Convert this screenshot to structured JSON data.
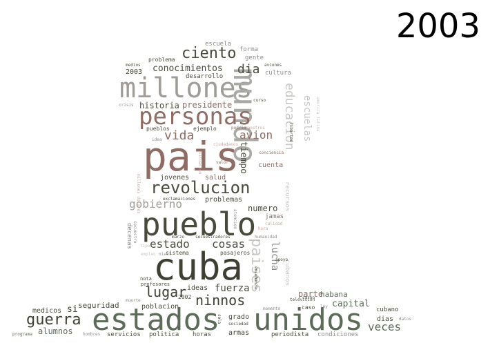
{
  "year": "2003",
  "words": [
    {
      "t": "pais",
      "c": "#8f6d64"
    },
    {
      "t": "cuba",
      "c": "#3f3f33"
    },
    {
      "t": "estados",
      "c": "#5c6c59"
    },
    {
      "t": "unidos",
      "c": "#5c6c59"
    },
    {
      "t": "pueblo",
      "c": "#4a4a3c"
    },
    {
      "t": "millones",
      "c": "#a09c98"
    },
    {
      "t": "mundo",
      "c": "#a8aaa6"
    },
    {
      "t": "personas",
      "c": "#8f6d64"
    },
    {
      "t": "revolucion",
      "c": "#4a4a3c"
    },
    {
      "t": "ciento",
      "c": "#4a4a3c"
    },
    {
      "t": "dia",
      "c": "#4a4a3c"
    },
    {
      "t": "vida",
      "c": "#8f6d64"
    },
    {
      "t": "avion",
      "c": "#8f6d64"
    },
    {
      "t": "gobierno",
      "c": "#a09c98"
    },
    {
      "t": "estado",
      "c": "#4a4a3c"
    },
    {
      "t": "cosas",
      "c": "#4a4a3c"
    },
    {
      "t": "ninnos",
      "c": "#3f3f33"
    },
    {
      "t": "lugar",
      "c": "#3f3f33"
    },
    {
      "t": "fuerza",
      "c": "#4a4a3c"
    },
    {
      "t": "guerra",
      "c": "#3f3f33"
    },
    {
      "t": "veces",
      "c": "#5c6c59"
    },
    {
      "t": "capital",
      "c": "#5c6c59"
    },
    {
      "t": "paises",
      "c": "#c5c8c3"
    },
    {
      "t": "educacion",
      "c": "#c5c8c3"
    },
    {
      "t": "escuelas",
      "c": "#c5c8c3"
    },
    {
      "t": "conocimientos",
      "c": "#4a4a3c"
    },
    {
      "t": "historia",
      "c": "#4a4a3c"
    },
    {
      "t": "presidente",
      "c": "#8f6d64"
    },
    {
      "t": "tiempo",
      "c": "#4a4a3c"
    },
    {
      "t": "numero",
      "c": "#4a4a3c"
    },
    {
      "t": "problemas",
      "c": "#4a4a3c"
    },
    {
      "t": "jovenes",
      "c": "#4a4a3c"
    },
    {
      "t": "salud",
      "c": "#8f6d64"
    },
    {
      "t": "cuenta",
      "c": "#8f6d64"
    },
    {
      "t": "lucha",
      "c": "#8b8c88"
    },
    {
      "t": "parte",
      "c": "#8f6d64"
    },
    {
      "t": "habana",
      "c": "#5c6c59"
    },
    {
      "t": "seguridad",
      "c": "#4a4a3c"
    },
    {
      "t": "alumnos",
      "c": "#5c6c59"
    },
    {
      "t": "dias",
      "c": "#4a4a3c"
    },
    {
      "t": "medicos",
      "c": "#4a4a3c"
    },
    {
      "t": "si",
      "c": "#3f3f33"
    },
    {
      "t": "poblacion",
      "c": "#4a4a3c"
    },
    {
      "t": "ideas",
      "c": "#4a4a3c"
    },
    {
      "t": "grado",
      "c": "#4a4a3c"
    },
    {
      "t": "armas",
      "c": "#3f3f33"
    },
    {
      "t": "horas",
      "c": "#4a4a3c"
    },
    {
      "t": "periodista",
      "c": "#4a4a3c"
    },
    {
      "t": "condiciones",
      "c": "#8b8c88"
    },
    {
      "t": "servicios",
      "c": "#4a4a3c"
    },
    {
      "t": "politica",
      "c": "#4a4a3c"
    },
    {
      "t": "cubano",
      "c": "#4a4a3c"
    },
    {
      "t": "escuela",
      "c": "#8b8c88"
    },
    {
      "t": "forma",
      "c": "#8b8c88"
    },
    {
      "t": "gente",
      "c": "#8b8c88"
    },
    {
      "t": "cultura",
      "c": "#8b8c88"
    },
    {
      "t": "desarrollo",
      "c": "#4a4a3c"
    },
    {
      "t": "problema",
      "c": "#4a4a3c"
    },
    {
      "t": "2003",
      "c": "#3f3f33"
    },
    {
      "t": "jamas",
      "c": "#8f6d64"
    },
    {
      "t": "recursos",
      "c": "#c5c8c3"
    },
    {
      "t": "decenas",
      "c": "#8b8c88"
    },
    {
      "t": "cubanos",
      "c": "#c5c8c3"
    },
    {
      "t": "sistema",
      "c": "#4a4a3c"
    },
    {
      "t": "pasajeros",
      "c": "#4a4a3c"
    },
    {
      "t": "ejemplo",
      "c": "#4a4a3c"
    },
    {
      "t": "pueblos",
      "c": "#4a4a3c"
    },
    {
      "t": "profesores",
      "c": "#4a4a3c"
    },
    {
      "t": "nota",
      "c": "#4a4a3c"
    },
    {
      "t": "2002",
      "c": "#4a4a3c"
    },
    {
      "t": "muerte",
      "c": "#8b8c88"
    },
    {
      "t": "television",
      "c": "#4a4a3c"
    },
    {
      "t": "ley",
      "c": "#8b8c88"
    },
    {
      "t": "caso",
      "c": "#4a4a3c"
    },
    {
      "t": "libertad",
      "c": "#4a4a3c"
    },
    {
      "t": "curso",
      "c": "#4a4a3c"
    },
    {
      "t": "crisis",
      "c": "#8b8c88"
    },
    {
      "t": "medios",
      "c": "#4a4a3c"
    },
    {
      "t": "aviones",
      "c": "#4a4a3c"
    },
    {
      "t": "idea",
      "c": "#8b8c88"
    },
    {
      "t": "maestros",
      "c": "#c5a89f"
    },
    {
      "t": "podria",
      "c": "#8f6d64"
    },
    {
      "t": "ciudadanos",
      "c": "#c5a89f"
    },
    {
      "t": "valor",
      "c": "#8f6d64"
    },
    {
      "t": "situacion",
      "c": "#c5a89f"
    },
    {
      "t": "conciencia",
      "c": "#8f6d64"
    },
    {
      "t": "hora",
      "c": "#c5a89f"
    },
    {
      "t": "calidad",
      "c": "#c5a89f"
    },
    {
      "t": "exclamaciones",
      "c": "#4a4a3c"
    },
    {
      "t": "millones dolares",
      "c": "#c5a89f"
    },
    {
      "t": "secuestro",
      "c": "#8b8c88"
    },
    {
      "t": "marzo",
      "c": "#4a4a3c"
    },
    {
      "t": "secuestradores",
      "c": "#4a4a3c"
    },
    {
      "t": "humanidad",
      "c": "#8b8c88"
    },
    {
      "t": "atencion",
      "c": "#8b8c88"
    },
    {
      "t": "enseñanza",
      "c": "#4a4a3c"
    },
    {
      "t": "apoyo",
      "c": "#4a4a3c"
    },
    {
      "t": "nivel",
      "c": "#8b8c88"
    },
    {
      "t": "momento",
      "c": "#8b8c88"
    },
    {
      "t": "sociedad",
      "c": "#4a4a3c"
    },
    {
      "t": "sola",
      "c": "#4a4a3c"
    },
    {
      "t": "hombres",
      "c": "#8b8c88"
    },
    {
      "t": "programa",
      "c": "#5c6c59"
    },
    {
      "t": "datos",
      "c": "#8b8c88"
    },
    {
      "t": "cason",
      "c": "#4a4a3c"
    },
    {
      "t": "america latina",
      "c": "#c5c8c3"
    },
    {
      "t": "empleo",
      "c": "#c5c8c3"
    },
    {
      "t": "tipo",
      "c": "#c5c8c3"
    }
  ]
}
